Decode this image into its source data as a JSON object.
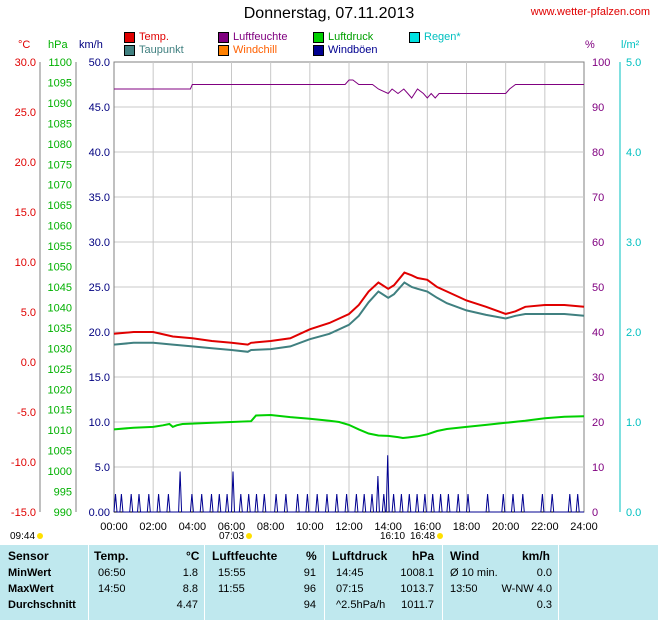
{
  "header": {
    "title": "Donnerstag, 07.11.2013",
    "site": "www.wetter-pfalzen.com"
  },
  "legend": [
    {
      "label": "Temp.",
      "color": "#e00000"
    },
    {
      "label": "Luftfeuchte",
      "color": "#800080"
    },
    {
      "label": "Luftdruck",
      "color": "#00d000"
    },
    {
      "label": "Regen*",
      "color": "#00e0e0"
    },
    {
      "label": "Taupunkt",
      "color": "#408080"
    },
    {
      "label": "Windchill",
      "color": "#ff8000"
    },
    {
      "label": "Windböen",
      "color": "#000090"
    }
  ],
  "axis_headers": {
    "temp": "°C",
    "pressure": "hPa",
    "wind": "km/h",
    "humidity": "%",
    "rain": "l/m²"
  },
  "chart_data": {
    "type": "line",
    "x_ticks": [
      "00:00",
      "02:00",
      "04:00",
      "06:00",
      "08:00",
      "10:00",
      "12:00",
      "14:00",
      "16:00",
      "18:00",
      "20:00",
      "22:00",
      "24:00"
    ],
    "axes": {
      "temp": {
        "ticks": [
          "30.0",
          "25.0",
          "20.0",
          "15.0",
          "10.0",
          "5.0",
          "0.0",
          "-5.0",
          "-10.0",
          "-15.0"
        ],
        "ylim": [
          -15,
          30
        ]
      },
      "pressure": {
        "ticks": [
          "1100",
          "1095",
          "1090",
          "1085",
          "1080",
          "1075",
          "1070",
          "1065",
          "1060",
          "1055",
          "1050",
          "1045",
          "1040",
          "1035",
          "1030",
          "1025",
          "1020",
          "1015",
          "1010",
          "1005",
          "1000",
          "995",
          "990"
        ],
        "ylim": [
          990,
          1100
        ]
      },
      "wind": {
        "ticks": [
          "50.0",
          "45.0",
          "40.0",
          "35.0",
          "30.0",
          "25.0",
          "20.0",
          "15.0",
          "10.0",
          "5.0",
          "0.00"
        ],
        "ylim": [
          0,
          50
        ]
      },
      "humidity": {
        "ticks": [
          "100",
          "90",
          "80",
          "70",
          "60",
          "50",
          "40",
          "30",
          "20",
          "10",
          "0"
        ],
        "ylim": [
          0,
          100
        ]
      },
      "rain": {
        "ticks": [
          "5.0",
          "4.0",
          "3.0",
          "2.0",
          "1.0",
          "0.0"
        ],
        "ylim": [
          0,
          5
        ]
      }
    },
    "grid": true,
    "series": [
      {
        "name": "Temp.",
        "axis": "wind",
        "color": "#e00000",
        "x": [
          0,
          1,
          2,
          3,
          4,
          5,
          6,
          6.83,
          7,
          8,
          9,
          10,
          11,
          12,
          12.5,
          13,
          13.5,
          14,
          14.3,
          14.83,
          15.2,
          15.5,
          16,
          16.5,
          17,
          18,
          19,
          20,
          20.5,
          21,
          22,
          23,
          24
        ],
        "values": [
          19.8,
          20.0,
          20.0,
          19.5,
          19.3,
          19.0,
          18.8,
          18.6,
          18.8,
          19.0,
          19.3,
          20.3,
          21.0,
          22.0,
          23.0,
          24.5,
          25.5,
          24.8,
          25.2,
          26.6,
          26.3,
          26.0,
          25.8,
          25.0,
          24.5,
          23.5,
          22.8,
          22.0,
          22.3,
          22.8,
          23.0,
          23.0,
          22.8
        ]
      },
      {
        "name": "Taupunkt",
        "axis": "wind",
        "color": "#408080",
        "x": [
          0,
          1,
          2,
          3,
          4,
          5,
          6,
          6.83,
          7,
          8,
          9,
          10,
          11,
          12,
          12.5,
          13,
          13.5,
          14,
          14.3,
          14.83,
          15.2,
          15.5,
          16,
          16.5,
          17,
          18,
          19,
          20,
          20.5,
          21,
          22,
          23,
          24
        ],
        "values": [
          18.6,
          18.8,
          18.8,
          18.6,
          18.4,
          18.2,
          18.0,
          17.8,
          18.0,
          18.1,
          18.4,
          19.2,
          19.8,
          20.8,
          21.8,
          23.3,
          24.5,
          23.8,
          24.2,
          25.5,
          25.0,
          24.8,
          24.5,
          23.8,
          23.2,
          22.4,
          21.9,
          21.5,
          21.8,
          22.0,
          22.0,
          22.0,
          21.8
        ]
      },
      {
        "name": "Luftfeuchte",
        "axis": "humidity",
        "color": "#800080",
        "x": [
          0,
          1,
          2,
          3,
          3.9,
          4,
          6,
          8,
          10,
          11,
          11.8,
          12.0,
          12.2,
          12.5,
          13,
          13.2,
          13.5,
          14,
          14.2,
          14.5,
          14.8,
          15,
          15.2,
          15.5,
          15.8,
          16,
          16.2,
          16.4,
          16.6,
          17,
          17.5,
          18,
          19,
          20,
          20.2,
          20.5,
          21,
          22,
          23,
          24
        ],
        "values": [
          94,
          94,
          94,
          94,
          94,
          95,
          95,
          95,
          95,
          95,
          95,
          96,
          96,
          95,
          95,
          95,
          94,
          93,
          94,
          93,
          94,
          93,
          92,
          94,
          93,
          92,
          93,
          92,
          93,
          93,
          93,
          93,
          93,
          93,
          94,
          95,
          95,
          95,
          95,
          95
        ]
      },
      {
        "name": "Luftdruck",
        "axis": "pressure",
        "color": "#00d000",
        "x": [
          0,
          1,
          2,
          2.5,
          2.83,
          3,
          3.2,
          3.5,
          4,
          5,
          6,
          7,
          7.25,
          8,
          9,
          10,
          11,
          11.5,
          12,
          12.5,
          13,
          13.5,
          14,
          14.5,
          14.75,
          15,
          15.5,
          16,
          16.5,
          17,
          18,
          19,
          20,
          21,
          22,
          23,
          24
        ],
        "values": [
          1010.2,
          1010.6,
          1010.8,
          1011.2,
          1011.5,
          1010.8,
          1011.2,
          1011.5,
          1011.6,
          1011.8,
          1012.0,
          1012.2,
          1013.6,
          1013.7,
          1013.2,
          1012.8,
          1012.3,
          1012.0,
          1011.3,
          1010.2,
          1009.2,
          1008.7,
          1008.6,
          1008.3,
          1008.1,
          1008.2,
          1008.5,
          1009.0,
          1009.8,
          1010.3,
          1010.8,
          1011.3,
          1011.8,
          1012.3,
          1012.9,
          1013.3,
          1013.4
        ]
      },
      {
        "name": "Windböen",
        "axis": "wind",
        "color": "#000090",
        "gust_hours": [
          0.0,
          0.3,
          0.8,
          1.2,
          1.7,
          2.2,
          2.7,
          3.3,
          3.9,
          4.4,
          4.9,
          5.3,
          5.7,
          6.0,
          6.4,
          6.8,
          7.2,
          7.6,
          8.2,
          8.7,
          9.3,
          9.8,
          10.3,
          10.8,
          11.3,
          11.8,
          12.3,
          12.7,
          13.1,
          13.4,
          13.7,
          13.9,
          14.2,
          14.6,
          15.0,
          15.4,
          15.8,
          16.2,
          16.6,
          17.0,
          17.5,
          18.0,
          19.0,
          19.8,
          20.3,
          20.8,
          21.8,
          22.3,
          23.2,
          23.6
        ],
        "gust_values": [
          2,
          2,
          2,
          2,
          2,
          2,
          2,
          4.5,
          2,
          2,
          2,
          2,
          2,
          4.5,
          2,
          2,
          2,
          2,
          2,
          2,
          2,
          2,
          2,
          2,
          2,
          2,
          2,
          2,
          2,
          4,
          2,
          6.3,
          2,
          2,
          2,
          2,
          2,
          2,
          2,
          2,
          2,
          2,
          2,
          2,
          2,
          2,
          2,
          2,
          2,
          2
        ]
      },
      {
        "name": "Regen*",
        "axis": "rain",
        "color": "#00e0e0",
        "values": [
          0
        ]
      }
    ],
    "sun": {
      "rise": "07:03",
      "set": "16:48",
      "first": "09:44",
      "last": "16:10"
    }
  },
  "table": {
    "headers": {
      "sensor": "Sensor",
      "temp": "Temp.",
      "temp_unit": "°C",
      "hum": "Luftfeuchte",
      "hum_unit": "%",
      "press": "Luftdruck",
      "press_unit": "hPa",
      "wind": "Wind",
      "wind_unit": "km/h"
    },
    "rows": [
      {
        "label": "MinWert",
        "t_time": "06:50",
        "t_val": "1.8",
        "h_time": "15:55",
        "h_val": "91",
        "p_time": "14:45",
        "p_val": "1008.1",
        "w_time": "Ø 10 min.",
        "w_val": "0.0"
      },
      {
        "label": "MaxWert",
        "t_time": "14:50",
        "t_val": "8.8",
        "h_time": "11:55",
        "h_val": "96",
        "p_time": "07:15",
        "p_val": "1013.7",
        "w_time": "13:50",
        "w_val": "W-NW 4.0"
      },
      {
        "label": "Durchschnitt",
        "t_time": "",
        "t_val": "4.47",
        "h_time": "",
        "h_val": "94",
        "p_time": "^2.5hPa/h",
        "p_val": "1011.7",
        "w_time": "",
        "w_val": "0.3"
      }
    ]
  }
}
